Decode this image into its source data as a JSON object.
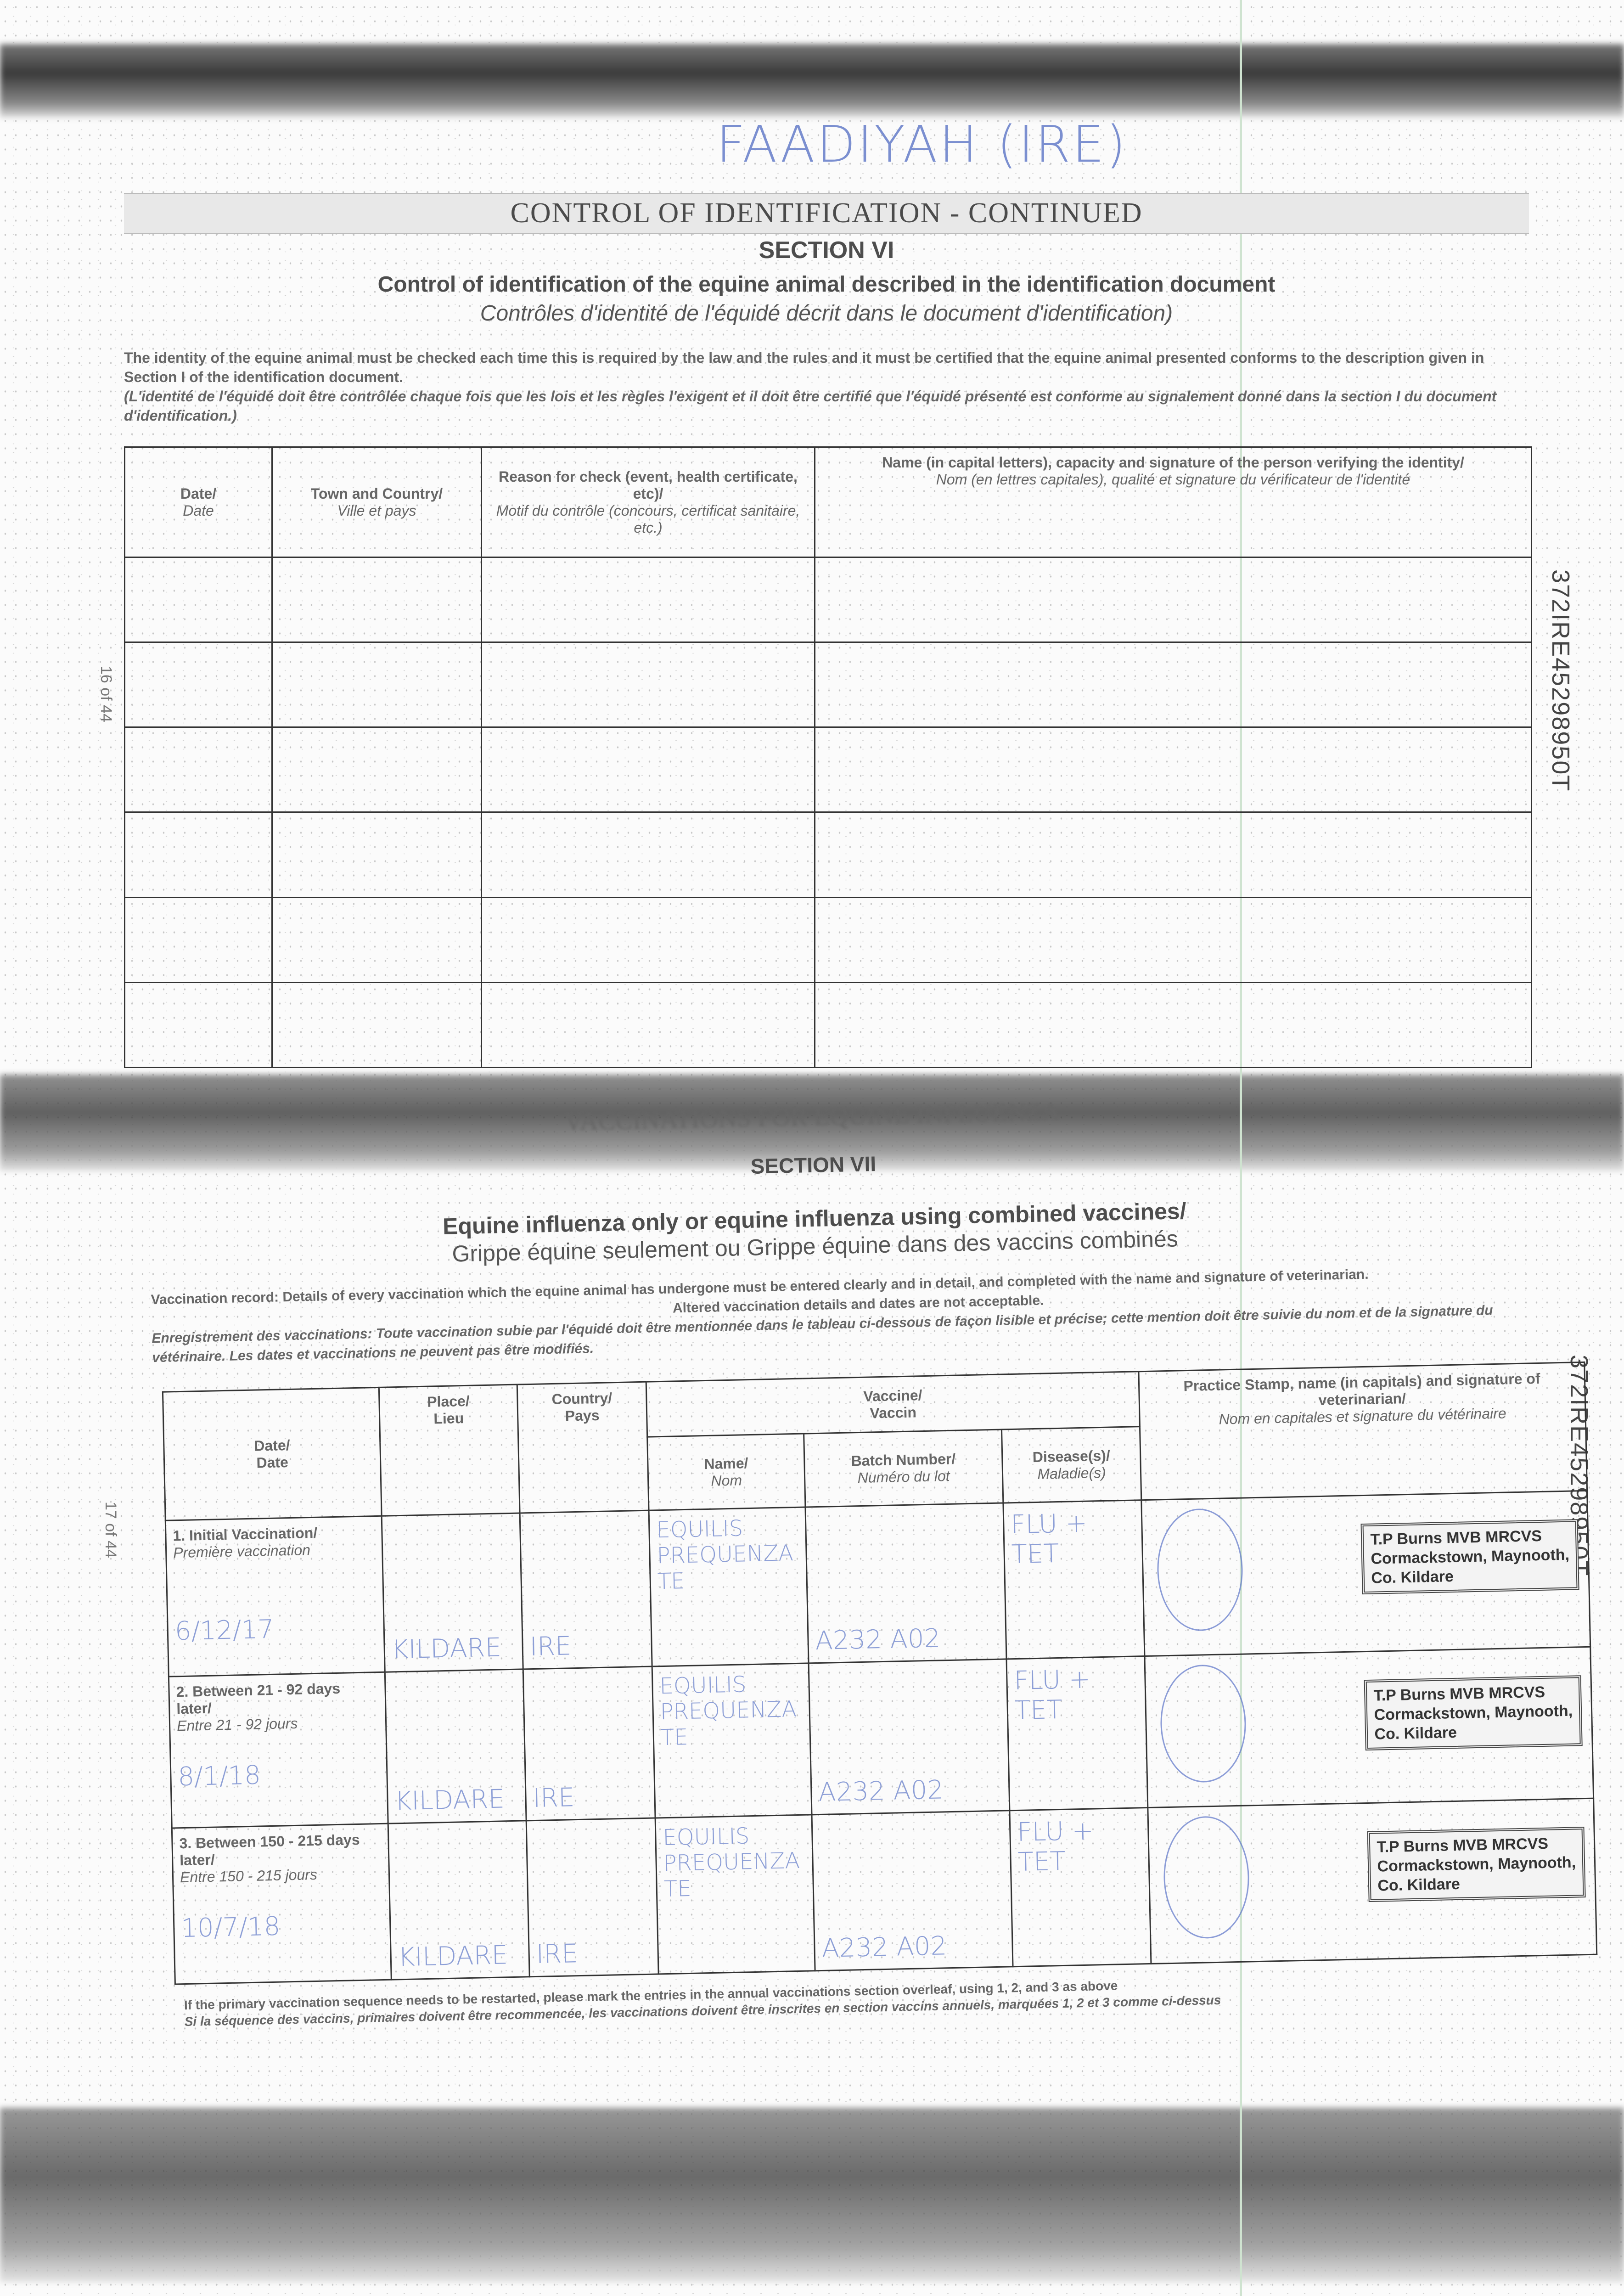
{
  "handwritten_title": "FAADIYAH (IRE)",
  "passport_number": "372IRE45298950T",
  "section6": {
    "header": "CONTROL OF IDENTIFICATION - CONTINUED",
    "section_label": "SECTION VI",
    "title_en": "Control of identification of the equine animal described in the identification document",
    "title_fr": "Contrôles d'identité de l'équidé décrit dans le document d'identification)",
    "para_en": "The identity of the equine animal must be checked each time this is required by the law and the rules and it must be certified that the equine animal presented conforms to the description given in Section I of the identification document.",
    "para_fr": "(L'identité de l'équidé doit être contrôlée chaque fois que les lois et les règles l'exigent et il doit être certifié que l'équidé présenté est conforme au signalement donné dans la section I du document d'identification.)",
    "columns": [
      {
        "en": "Date/",
        "fr": "Date"
      },
      {
        "en": "Town and Country/",
        "fr": "Ville et pays"
      },
      {
        "en": "Reason for check (event, health certificate, etc)/",
        "fr": "Motif du contrôle (concours, certificat sanitaire, etc.)"
      },
      {
        "en": "Name (in capital letters), capacity and signature of the person verifying the identity/",
        "fr": "Nom (en lettres capitales), qualité et signature du vérificateur de l'identité"
      }
    ],
    "page_label": "16 of 44"
  },
  "section7": {
    "header": "VACCINATIONS FOR EQUINE INFLUENZA",
    "section_label": "SECTION VII",
    "title_en": "Equine influenza only or equine influenza using combined vaccines/",
    "title_fr": "Grippe équine seulement ou Grippe équine dans des vaccins combinés",
    "para_en_1": "Vaccination record: Details of every vaccination which the equine animal has undergone must be entered clearly and in detail, and completed with the name and signature of veterinarian.",
    "para_en_2": "Altered vaccination details and dates are not acceptable.",
    "para_fr": "Enregistrement des vaccinations: Toute vaccination subie par l'équidé doit être mentionnée dans le tableau ci-dessous de façon lisible et précise; cette mention doit être suivie du nom et de la signature du vétérinaire. Les dates et vaccinations ne peuvent pas être modifiés.",
    "columns": {
      "date": {
        "en": "Date/",
        "fr": "Date"
      },
      "place": {
        "en": "Place/",
        "fr": "Lieu"
      },
      "country": {
        "en": "Country/",
        "fr": "Pays"
      },
      "vaccine": {
        "en": "Vaccine/",
        "fr": "Vaccin"
      },
      "name": {
        "en": "Name/",
        "fr": "Nom"
      },
      "batch": {
        "en": "Batch Number/",
        "fr": "Numéro du lot"
      },
      "disease": {
        "en": "Disease(s)/",
        "fr": "Maladie(s)"
      },
      "vet": {
        "en": "Practice Stamp, name (in capitals) and signature of veterinarian/",
        "fr": "Nom en capitales et signature du vétérinaire"
      }
    },
    "rows": [
      {
        "label_en": "1. Initial Vaccination/",
        "label_fr": "Première vaccination",
        "date": "6/12/17",
        "place": "KILDARE",
        "country": "IRE",
        "name": "EQUILIS PREQUENZA TE",
        "batch": "A232 A02",
        "disease": "FLU + TET",
        "stamp": [
          "T.P Burns MVB MRCVS",
          "Cormackstown, Maynooth,",
          "Co. Kildare"
        ]
      },
      {
        "label_en": "2. Between 21 - 92 days later/",
        "label_fr": "Entre 21 - 92 jours",
        "date": "8/1/18",
        "place": "KILDARE",
        "country": "IRE",
        "name": "EQUILIS PREQUENZA TE",
        "batch": "A232 A02",
        "disease": "FLU + TET",
        "stamp": [
          "T.P Burns MVB MRCVS",
          "Cormackstown, Maynooth,",
          "Co. Kildare"
        ]
      },
      {
        "label_en": "3. Between 150 - 215 days later/",
        "label_fr": "Entre 150 - 215 jours",
        "date": "10/7/18",
        "place": "KILDARE",
        "country": "IRE",
        "name": "EQUILIS PREQUENZA TE",
        "batch": "A232 A02",
        "disease": "FLU + TET",
        "stamp": [
          "T.P Burns MVB MRCVS",
          "Cormackstown, Maynooth,",
          "Co. Kildare"
        ]
      }
    ],
    "footnote_en": "If the primary vaccination sequence needs to be restarted, please mark the entries in the annual vaccinations section overleaf, using 1, 2, and 3 as above",
    "footnote_fr": "Si la séquence des vaccins, primaires doivent être recommencée, les vaccinations doivent être inscrites en section vaccins annuels, marquées 1, 2 et 3 comme ci-dessus",
    "page_label": "17 of 44"
  }
}
